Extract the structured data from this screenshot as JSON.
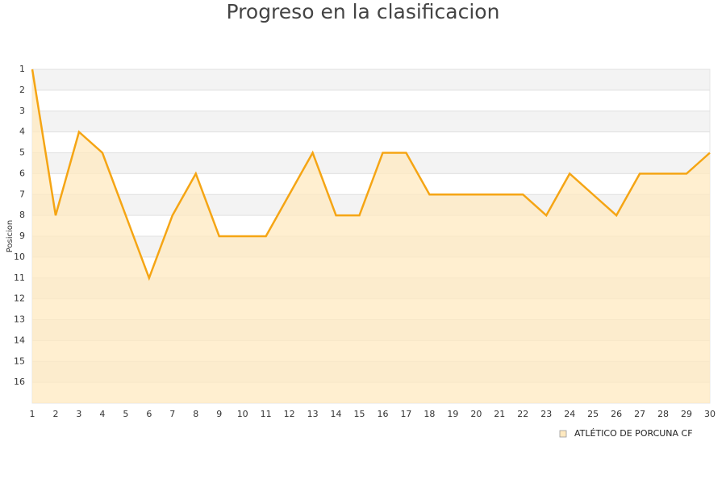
{
  "chart_data": {
    "type": "line",
    "title": "Progreso en la clasificacion",
    "y_label": "Posicion",
    "x": [
      1,
      2,
      3,
      4,
      5,
      6,
      7,
      8,
      9,
      10,
      11,
      12,
      13,
      14,
      15,
      16,
      17,
      18,
      19,
      20,
      21,
      22,
      23,
      24,
      25,
      26,
      27,
      28,
      29,
      30
    ],
    "xlim": [
      1,
      30
    ],
    "xticks": [
      1,
      2,
      3,
      4,
      5,
      6,
      7,
      8,
      9,
      10,
      11,
      12,
      13,
      14,
      15,
      16,
      17,
      18,
      19,
      20,
      21,
      22,
      23,
      24,
      25,
      26,
      27,
      28,
      29,
      30
    ],
    "ylim": [
      1,
      17
    ],
    "y_inverted": true,
    "yticks": [
      1,
      2,
      3,
      4,
      5,
      6,
      7,
      8,
      9,
      10,
      11,
      12,
      13,
      14,
      15,
      16
    ],
    "grid": true,
    "legend": "bottom-right",
    "series": [
      {
        "name": "ATLÉTICO DE PORCUNA CF",
        "color": "#f5a514",
        "fill": "#ffe9c0",
        "values": [
          1,
          8,
          4,
          5,
          8,
          11,
          8,
          6,
          9,
          9,
          9,
          7,
          5,
          8,
          8,
          5,
          5,
          7,
          7,
          7,
          7,
          7,
          8,
          6,
          7,
          8,
          6,
          6,
          6,
          5
        ]
      }
    ]
  }
}
